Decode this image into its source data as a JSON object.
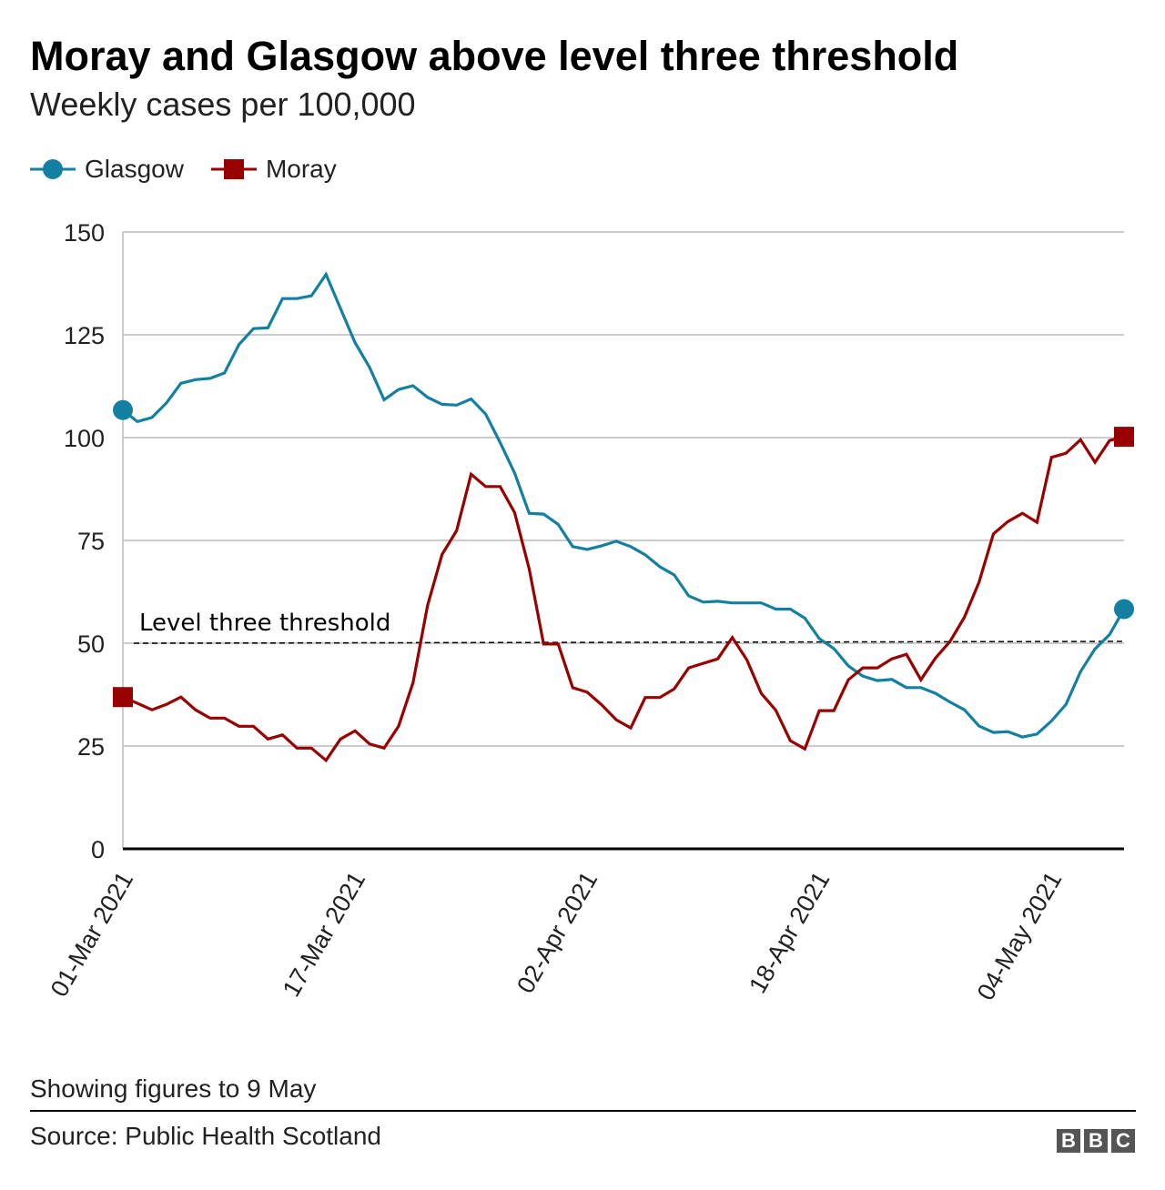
{
  "chart_data": {
    "type": "line",
    "title": "Moray and Glasgow above level three threshold",
    "subtitle": "Weekly cases per 100,000",
    "xlabel": "",
    "ylabel": "",
    "x_start": "01-Mar 2021",
    "x_end": "09-May 2021",
    "x_tick_labels": [
      "01-Mar 2021",
      "17-Mar 2021",
      "02-Apr 2021",
      "18-Apr 2021",
      "04-May 2021"
    ],
    "x_tick_days": [
      0,
      16,
      32,
      48,
      64
    ],
    "ylim": [
      0,
      150
    ],
    "y_ticks": [
      0,
      25,
      50,
      75,
      100,
      125,
      150
    ],
    "grid": true,
    "legend_placement": "top-left",
    "threshold": {
      "label": "Level three threshold",
      "value": 50
    },
    "series": [
      {
        "name": "Glasgow",
        "color": "#1380a1",
        "marker": "circle",
        "values": [
          106.7,
          103.9,
          104.9,
          108.4,
          113.2,
          114.1,
          114.4,
          115.7,
          122.6,
          126.5,
          126.7,
          133.8,
          133.8,
          134.5,
          139.7,
          131.4,
          123.1,
          117.1,
          109.2,
          111.7,
          112.6,
          109.8,
          108.1,
          107.9,
          109.4,
          105.7,
          98.8,
          91.4,
          81.6,
          81.4,
          78.9,
          73.5,
          72.8,
          73.7,
          74.8,
          73.5,
          71.5,
          68.6,
          66.6,
          61.5,
          60.0,
          60.2,
          59.8,
          59.8,
          59.8,
          58.3,
          58.3,
          56.1,
          51.1,
          48.7,
          44.5,
          42.0,
          40.9,
          41.2,
          39.2,
          39.2,
          37.8,
          35.7,
          33.8,
          29.9,
          28.3,
          28.5,
          27.2,
          27.9,
          31.1,
          35.1,
          43.1,
          48.6,
          52.1,
          58.3
        ]
      },
      {
        "name": "Moray",
        "color": "#990000",
        "marker": "square",
        "values": [
          36.9,
          35.4,
          33.8,
          35.1,
          36.9,
          33.8,
          31.8,
          31.8,
          29.8,
          29.8,
          26.7,
          27.7,
          24.5,
          24.5,
          21.5,
          26.7,
          28.7,
          25.5,
          24.5,
          29.8,
          40.4,
          59.2,
          71.6,
          77.4,
          91.1,
          88.1,
          88.1,
          81.8,
          68.1,
          49.8,
          49.8,
          39.2,
          38.1,
          35.0,
          31.4,
          29.4,
          36.8,
          36.8,
          38.9,
          44.0,
          45.1,
          46.2,
          51.4,
          46.0,
          37.8,
          33.7,
          26.3,
          24.3,
          33.6,
          33.6,
          41.1,
          44.0,
          44.0,
          46.2,
          47.3,
          41.1,
          46.4,
          50.4,
          56.3,
          64.8,
          76.6,
          79.6,
          81.6,
          79.4,
          95.2,
          96.2,
          99.5,
          94.0,
          99.3,
          100.2
        ]
      }
    ]
  },
  "footer": {
    "note": "Showing figures to 9 May",
    "source": "Source: Public Health Scotland",
    "logo": "BBC"
  }
}
